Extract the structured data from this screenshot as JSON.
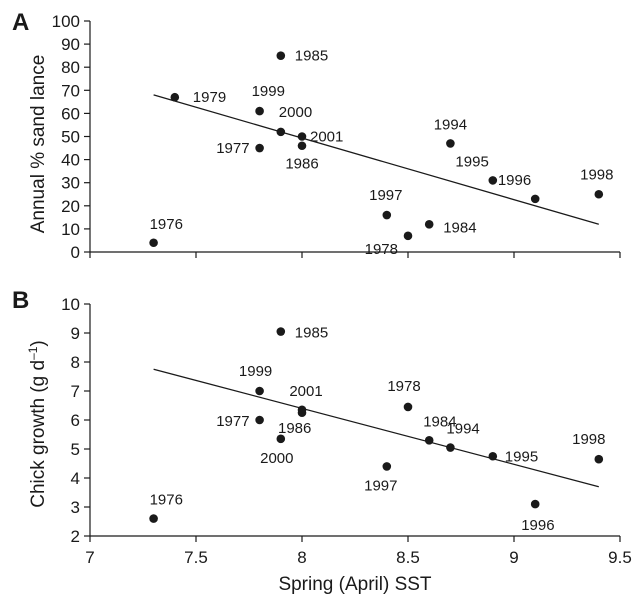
{
  "chart_data": [
    {
      "type": "scatter",
      "panel": "A",
      "ylabel": "Annual % sand lance",
      "xlim": [
        7,
        9.5
      ],
      "ylim": [
        0,
        100
      ],
      "yticks": [
        "0",
        "10",
        "20",
        "30",
        "40",
        "50",
        "60",
        "70",
        "80",
        "90",
        "100"
      ],
      "grid": false,
      "points": [
        {
          "label": "1976",
          "x": 7.3,
          "y": 4
        },
        {
          "label": "1977",
          "x": 7.8,
          "y": 45
        },
        {
          "label": "1978",
          "x": 8.5,
          "y": 7
        },
        {
          "label": "1979",
          "x": 7.4,
          "y": 67
        },
        {
          "label": "1984",
          "x": 8.6,
          "y": 12
        },
        {
          "label": "1985",
          "x": 7.9,
          "y": 85
        },
        {
          "label": "1986",
          "x": 8.0,
          "y": 46
        },
        {
          "label": "1994",
          "x": 8.7,
          "y": 47
        },
        {
          "label": "1995",
          "x": 8.9,
          "y": 31
        },
        {
          "label": "1996",
          "x": 9.1,
          "y": 23
        },
        {
          "label": "1997",
          "x": 8.4,
          "y": 16
        },
        {
          "label": "1998",
          "x": 9.4,
          "y": 25
        },
        {
          "label": "1999",
          "x": 7.8,
          "y": 61
        },
        {
          "label": "2000",
          "x": 7.9,
          "y": 52
        },
        {
          "label": "2001",
          "x": 8.0,
          "y": 50
        }
      ],
      "trendline": {
        "x": [
          7.3,
          9.4
        ],
        "y": [
          68,
          12
        ]
      }
    },
    {
      "type": "scatter",
      "panel": "B",
      "ylabel_main": "Chick growth (g d",
      "ylabel_sup": "–1",
      "ylabel_end": ")",
      "xlabel": "Spring (April) SST",
      "xlim": [
        7,
        9.5
      ],
      "ylim": [
        2,
        10
      ],
      "xticks": [
        "7",
        "7.5",
        "8",
        "8.5",
        "9",
        "9.5"
      ],
      "yticks": [
        "2",
        "3",
        "4",
        "5",
        "6",
        "7",
        "8",
        "9",
        "10"
      ],
      "grid": false,
      "points": [
        {
          "label": "1976",
          "x": 7.3,
          "y": 2.6
        },
        {
          "label": "1977",
          "x": 7.8,
          "y": 6.0
        },
        {
          "label": "1978",
          "x": 8.5,
          "y": 6.45
        },
        {
          "label": "1984",
          "x": 8.6,
          "y": 5.3
        },
        {
          "label": "1985",
          "x": 7.9,
          "y": 9.05
        },
        {
          "label": "1986",
          "x": 8.0,
          "y": 6.25
        },
        {
          "label": "1994",
          "x": 8.7,
          "y": 5.05
        },
        {
          "label": "1995",
          "x": 8.9,
          "y": 4.75
        },
        {
          "label": "1996",
          "x": 9.1,
          "y": 3.1
        },
        {
          "label": "1997",
          "x": 8.4,
          "y": 4.4
        },
        {
          "label": "1998",
          "x": 9.4,
          "y": 4.65
        },
        {
          "label": "1999",
          "x": 7.8,
          "y": 7.0
        },
        {
          "label": "2000",
          "x": 7.9,
          "y": 5.35
        },
        {
          "label": "2001",
          "x": 8.0,
          "y": 6.35
        }
      ],
      "trendline": {
        "x": [
          7.3,
          9.4
        ],
        "y": [
          7.75,
          3.7
        ]
      }
    }
  ]
}
